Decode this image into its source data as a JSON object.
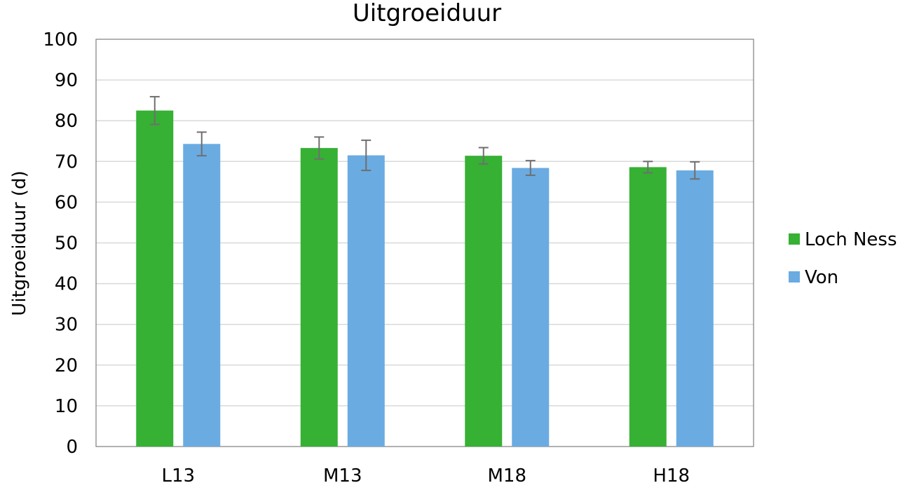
{
  "chart_data": {
    "type": "bar",
    "title": "Uitgroeiduur",
    "xlabel": "",
    "ylabel": "Uitgroeiduur (d)",
    "ylim": [
      0,
      100
    ],
    "yticks": [
      "0",
      "10",
      "20",
      "30",
      "40",
      "50",
      "60",
      "70",
      "80",
      "90",
      "100"
    ],
    "grid": true,
    "legend_position": "right",
    "categories": [
      "L13",
      "M13",
      "M18",
      "H18"
    ],
    "series": [
      {
        "name": "Loch Ness",
        "color": "#36b134",
        "values": [
          82.5,
          73.3,
          71.4,
          68.6
        ],
        "errors": [
          3.4,
          2.7,
          2.0,
          1.4
        ]
      },
      {
        "name": "Von",
        "color": "#6aabe2",
        "values": [
          74.3,
          71.5,
          68.4,
          67.8
        ],
        "errors": [
          2.9,
          3.7,
          1.8,
          2.1
        ]
      }
    ]
  }
}
